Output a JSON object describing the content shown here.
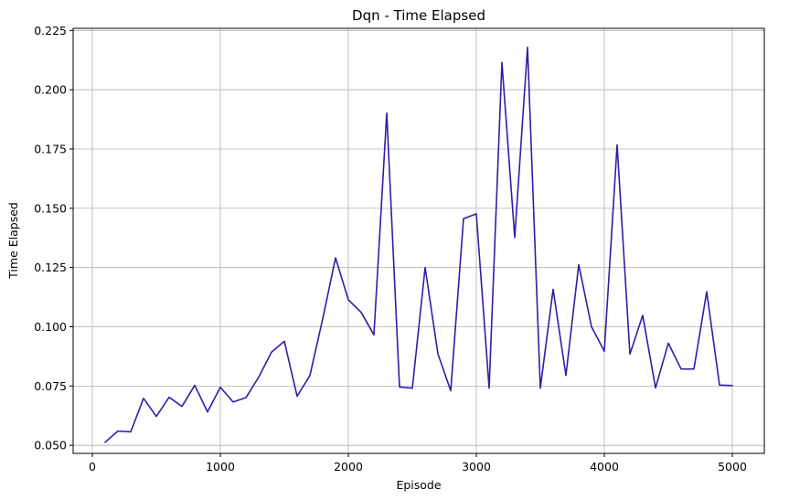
{
  "chart_data": {
    "type": "line",
    "title": "Dqn - Time Elapsed",
    "xlabel": "Episode",
    "ylabel": "Time Elapsed",
    "xlim": [
      -150,
      5250
    ],
    "ylim": [
      0.0466,
      0.2259
    ],
    "xticks": [
      0,
      1000,
      2000,
      3000,
      4000,
      5000
    ],
    "xtick_labels": [
      "0",
      "1000",
      "2000",
      "3000",
      "4000",
      "5000"
    ],
    "yticks": [
      0.05,
      0.075,
      0.1,
      0.125,
      0.15,
      0.175,
      0.2,
      0.225
    ],
    "ytick_labels": [
      "0.050",
      "0.075",
      "0.100",
      "0.125",
      "0.150",
      "0.175",
      "0.200",
      "0.225"
    ],
    "grid": true,
    "legend": "none",
    "series": [
      {
        "color": "#3a18a8",
        "x": [
          100,
          200,
          300,
          400,
          500,
          600,
          700,
          800,
          900,
          1000,
          1100,
          1200,
          1300,
          1400,
          1500,
          1600,
          1700,
          1800,
          1900,
          2000,
          2100,
          2200,
          2300,
          2400,
          2500,
          2600,
          2700,
          2800,
          2900,
          3000,
          3100,
          3200,
          3300,
          3400,
          3500,
          3600,
          3700,
          3800,
          3900,
          4000,
          4100,
          4200,
          4300,
          4400,
          4500,
          4600,
          4700,
          4800,
          4900,
          5000
        ],
        "y": [
          0.0513,
          0.056,
          0.0557,
          0.0698,
          0.0622,
          0.0703,
          0.0664,
          0.0753,
          0.0641,
          0.0745,
          0.0683,
          0.0701,
          0.0788,
          0.0893,
          0.0939,
          0.0707,
          0.0795,
          0.1034,
          0.1291,
          0.1114,
          0.1061,
          0.0966,
          0.1901,
          0.0746,
          0.0741,
          0.125,
          0.0886,
          0.073,
          0.1456,
          0.1476,
          0.0741,
          0.2115,
          0.1377,
          0.2179,
          0.0741,
          0.1158,
          0.0795,
          0.1262,
          0.1,
          0.0897,
          0.1767,
          0.0885,
          0.1048,
          0.0742,
          0.0931,
          0.0822,
          0.0822,
          0.1148,
          0.0754,
          0.0752
        ]
      }
    ]
  }
}
